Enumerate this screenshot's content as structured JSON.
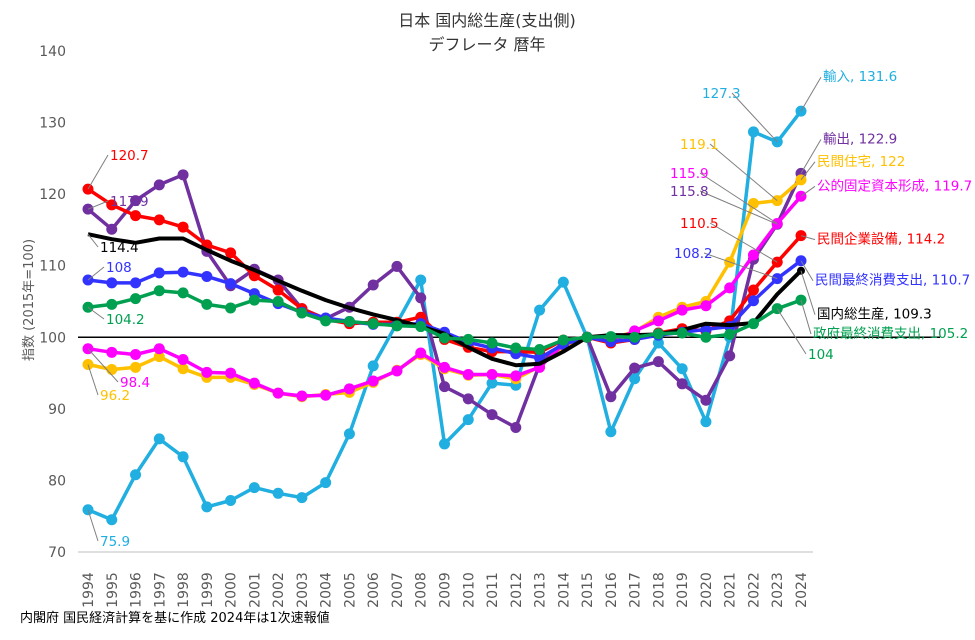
{
  "chart_data": {
    "type": "line",
    "title": "日本 国内総生産(支出側)",
    "subtitle": "デフレータ 暦年",
    "xlabel": "",
    "ylabel": "指数 (2015年=100)",
    "ylim": [
      70,
      140
    ],
    "yticks": [
      70,
      80,
      90,
      100,
      110,
      120,
      130,
      140
    ],
    "reference_line": 100,
    "grid": false,
    "legend": "direct labels at line ends",
    "source": "内閣府 国民経済計算を基に作成 2024年は1次速報値",
    "x": [
      "1994",
      "1995",
      "1996",
      "1997",
      "1998",
      "1999",
      "2000",
      "2001",
      "2002",
      "2003",
      "2004",
      "2005",
      "2006",
      "2007",
      "2008",
      "2009",
      "2010",
      "2011",
      "2012",
      "2013",
      "2014",
      "2015",
      "2016",
      "2017",
      "2018",
      "2019",
      "2020",
      "2021",
      "2022",
      "2023",
      "2024"
    ],
    "series": [
      {
        "name": "輸入",
        "color": "#21aee0",
        "marker": true,
        "values": [
          75.9,
          74.5,
          80.8,
          85.8,
          83.3,
          76.3,
          77.2,
          79.0,
          78.2,
          77.6,
          79.7,
          86.5,
          96.0,
          102.0,
          108.0,
          85.1,
          88.5,
          93.6,
          93.3,
          103.8,
          107.7,
          100.0,
          86.8,
          94.2,
          99.2,
          95.6,
          88.2,
          100.0,
          128.7,
          127.3,
          131.6
        ],
        "end_label": "輸入, 131.6",
        "callouts": [
          "75.9",
          "127.3"
        ]
      },
      {
        "name": "輸出",
        "color": "#7030a0",
        "marker": true,
        "values": [
          117.9,
          115.1,
          119.1,
          121.3,
          122.7,
          112.0,
          107.2,
          109.5,
          108.0,
          104.0,
          102.6,
          104.2,
          107.3,
          109.9,
          105.5,
          93.1,
          91.4,
          89.2,
          87.4,
          96.2,
          99.3,
          100.0,
          91.7,
          95.7,
          96.6,
          93.5,
          91.2,
          97.4,
          110.9,
          115.8,
          122.9
        ],
        "end_label": "輸出, 122.9",
        "callouts": [
          "117.9",
          "115.8"
        ]
      },
      {
        "name": "民間住宅",
        "color": "#ffc000",
        "marker": true,
        "values": [
          96.2,
          95.5,
          95.8,
          97.3,
          95.6,
          94.4,
          94.4,
          93.4,
          92.2,
          91.7,
          92.0,
          92.3,
          93.7,
          95.4,
          97.6,
          95.6,
          94.7,
          94.8,
          94.2,
          95.9,
          98.8,
          100.0,
          99.8,
          100.8,
          102.8,
          104.2,
          105.0,
          110.5,
          118.7,
          119.1,
          122.0
        ],
        "end_label": "民間住宅, 122",
        "callouts": [
          "96.2",
          "119.1"
        ]
      },
      {
        "name": "公的固定資本形成",
        "color": "#ff00ff",
        "marker": true,
        "values": [
          98.4,
          97.9,
          97.6,
          98.4,
          96.9,
          95.1,
          95.0,
          93.6,
          92.2,
          91.8,
          91.9,
          92.8,
          93.9,
          95.3,
          97.8,
          95.8,
          94.8,
          94.8,
          94.6,
          95.8,
          99.0,
          100.0,
          99.3,
          100.9,
          102.3,
          103.8,
          104.4,
          106.9,
          111.5,
          115.9,
          119.7
        ],
        "end_label": "公的固定資本形成, 119.7",
        "callouts": [
          "98.4",
          "115.9"
        ]
      },
      {
        "name": "民間企業設備",
        "color": "#ff0000",
        "marker": true,
        "values": [
          120.7,
          118.5,
          117.0,
          116.4,
          115.4,
          112.9,
          111.8,
          108.6,
          106.6,
          104.0,
          102.5,
          101.9,
          102.1,
          102.1,
          102.8,
          99.7,
          98.6,
          98.0,
          98.0,
          97.9,
          99.6,
          100.0,
          99.2,
          99.7,
          100.6,
          101.2,
          100.9,
          102.3,
          106.6,
          110.5,
          114.2
        ],
        "end_label": "民間企業設備, 114.2",
        "callouts": [
          "120.7",
          "110.5"
        ]
      },
      {
        "name": "民間最終消費支出",
        "color": "#3333ff",
        "marker": true,
        "values": [
          108.0,
          107.6,
          107.6,
          109.0,
          109.1,
          108.5,
          107.5,
          106.1,
          104.7,
          103.5,
          102.7,
          102.2,
          101.8,
          101.8,
          101.9,
          100.7,
          99.3,
          98.5,
          97.7,
          97.1,
          99.0,
          100.0,
          99.4,
          99.7,
          100.3,
          100.7,
          101.1,
          101.5,
          105.1,
          108.2,
          110.7
        ],
        "end_label": "民間最終消費支出, 110.7",
        "callouts": [
          "108",
          "108.2"
        ]
      },
      {
        "name": "国内総生産",
        "color": "#000000",
        "marker": false,
        "values": [
          114.4,
          113.7,
          113.2,
          113.8,
          113.8,
          112.2,
          110.7,
          109.4,
          107.9,
          106.5,
          105.2,
          104.1,
          103.2,
          102.4,
          101.5,
          100.5,
          98.6,
          97.0,
          96.1,
          96.3,
          98.0,
          100.0,
          100.3,
          100.3,
          100.4,
          101.0,
          101.9,
          101.7,
          102.0,
          106.0,
          109.3
        ],
        "end_label": "国内総生産, 109.3",
        "callouts": [
          "114.4"
        ]
      },
      {
        "name": "政府最終消費支出",
        "color": "#00a050",
        "marker": true,
        "values": [
          104.2,
          104.6,
          105.4,
          106.5,
          106.2,
          104.6,
          104.1,
          105.2,
          105.0,
          103.4,
          102.3,
          102.2,
          101.9,
          101.6,
          101.5,
          99.9,
          99.7,
          99.2,
          98.5,
          98.3,
          99.6,
          100.0,
          100.1,
          100.0,
          100.5,
          100.6,
          100.0,
          100.4,
          101.9,
          104.0,
          105.2
        ],
        "end_label": "政府最終消費支出, 105.2",
        "callouts": [
          "104.2",
          "104"
        ]
      }
    ]
  }
}
